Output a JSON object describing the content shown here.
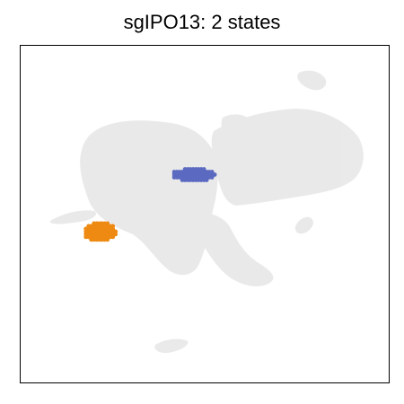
{
  "chart_data": {
    "type": "scatter",
    "title": "sgIPO13: 2 states",
    "xlabel": "",
    "ylabel": "",
    "grid": false,
    "axes_ticks": false,
    "background_color": "#e6e6e6",
    "series": [
      {
        "state": 1,
        "color": "#5b6ac0",
        "x": [
          3.2,
          5.6
        ],
        "y": [
          0.8,
          1.4
        ]
      },
      {
        "state": 2,
        "color": "#ee8a12",
        "x": [
          -1.6,
          0.2
        ],
        "y": [
          -2.4,
          -1.5
        ]
      }
    ]
  }
}
